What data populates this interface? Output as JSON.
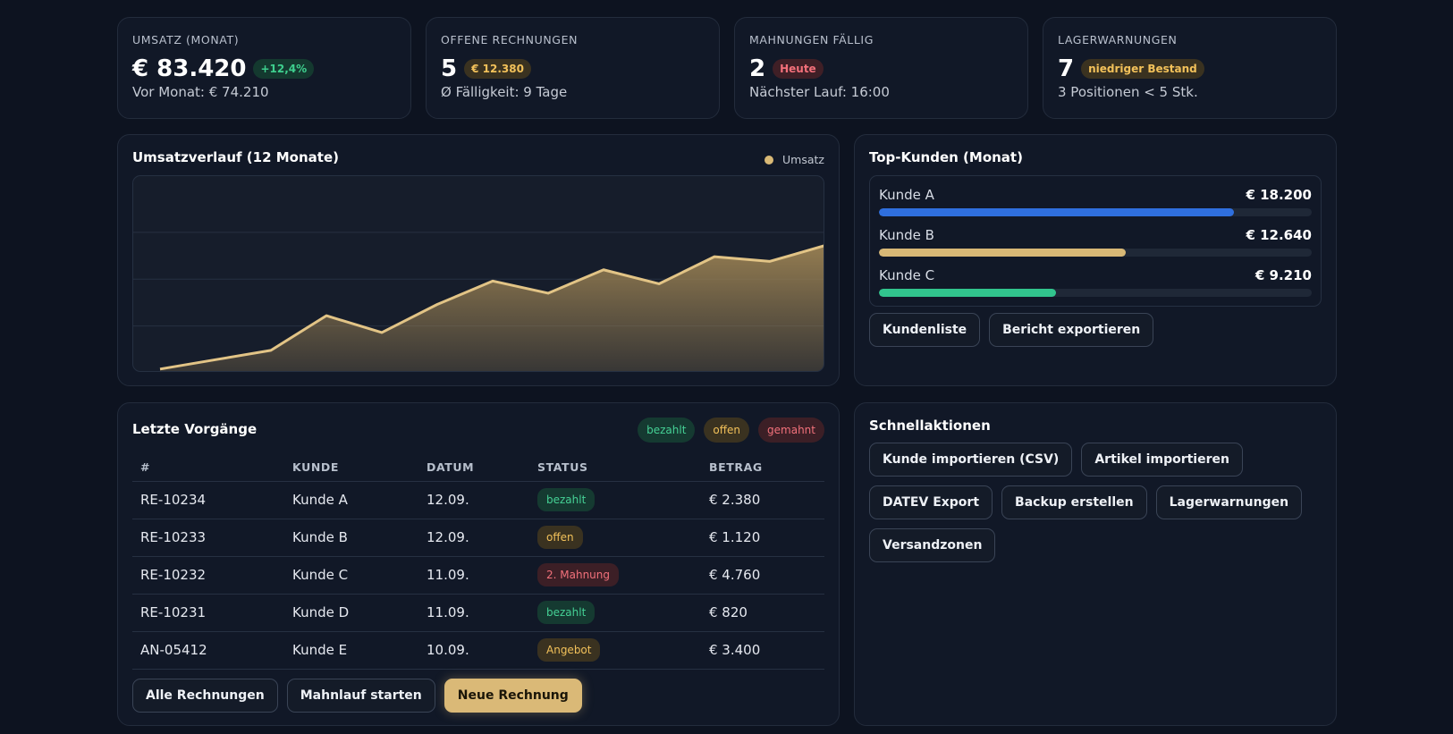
{
  "kpis": [
    {
      "label": "UMSATZ (MONAT)",
      "value": "€ 83.420",
      "badge": "+12,4%",
      "sub": "Vor Monat: € 74.210"
    },
    {
      "label": "OFFENE RECHNUNGEN",
      "value": "5",
      "badge": "€ 12.380",
      "sub": "Ø Fälligkeit: 9 Tage"
    },
    {
      "label": "MAHNUNGEN FÄLLIG",
      "value": "2",
      "badge": "Heute",
      "sub": "Nächster Lauf: 16:00"
    },
    {
      "label": "LAGERWARNUNGEN",
      "value": "7",
      "badge": "niedriger Bestand",
      "sub": "3 Positionen < 5 Stk."
    }
  ],
  "chart": {
    "title": "Umsatzverlauf (12 Monate)",
    "legend": "Umsatz"
  },
  "chart_data": {
    "type": "area",
    "title": "Umsatzverlauf (12 Monate)",
    "series": [
      {
        "name": "Umsatz",
        "values": [
          4,
          14,
          24,
          61,
          43,
          73,
          98,
          85,
          110,
          95,
          124,
          119,
          136
        ]
      }
    ],
    "ylim": [
      0,
      210
    ],
    "grid": true,
    "line_color": "#e2c486",
    "fill_color": "#9a8153"
  },
  "customers": {
    "title": "Top-Kunden (Monat)",
    "items": [
      {
        "name": "Kunde A",
        "value": "€ 18.200",
        "share": 0.82,
        "color": "#2f6fde"
      },
      {
        "name": "Kunde B",
        "value": "€ 12.640",
        "share": 0.57,
        "color": "#d8b876"
      },
      {
        "name": "Kunde C",
        "value": "€ 9.210",
        "share": 0.41,
        "color": "#31c48d"
      }
    ],
    "btn_list": "Kundenliste",
    "btn_export": "Bericht exportieren"
  },
  "transactions": {
    "title": "Letzte Vorgänge",
    "tags": {
      "paid": "bezahlt",
      "open": "offen",
      "dunned": "gemahnt"
    },
    "headers": [
      "#",
      "KUNDE",
      "DATUM",
      "STATUS",
      "BETRAG"
    ],
    "rows": [
      {
        "id": "RE-10234",
        "customer": "Kunde A",
        "date": "12.09.",
        "status": "bezahlt",
        "amount": "€ 2.380"
      },
      {
        "id": "RE-10233",
        "customer": "Kunde B",
        "date": "12.09.",
        "status": "offen",
        "amount": "€ 1.120"
      },
      {
        "id": "RE-10232",
        "customer": "Kunde C",
        "date": "11.09.",
        "status": "2. Mahnung",
        "amount": "€ 4.760"
      },
      {
        "id": "RE-10231",
        "customer": "Kunde D",
        "date": "11.09.",
        "status": "bezahlt",
        "amount": "€ 820"
      },
      {
        "id": "AN-05412",
        "customer": "Kunde E",
        "date": "10.09.",
        "status": "Angebot",
        "amount": "€ 3.400"
      }
    ],
    "btn_all": "Alle Rechnungen",
    "btn_dunning": "Mahnlauf starten",
    "btn_new": "Neue Rechnung"
  },
  "quick": {
    "title": "Schnellaktionen",
    "actions": [
      "Kunde importieren (CSV)",
      "Artikel importieren",
      "DATEV Export",
      "Backup erstellen",
      "Lagerwarnungen",
      "Versandzonen"
    ]
  },
  "colors": {
    "background": "#0d1320",
    "panel": "#111827",
    "accent": "#dab977",
    "positive": "#3ecf8e",
    "warning": "#f2c15a",
    "danger": "#f3707a"
  }
}
